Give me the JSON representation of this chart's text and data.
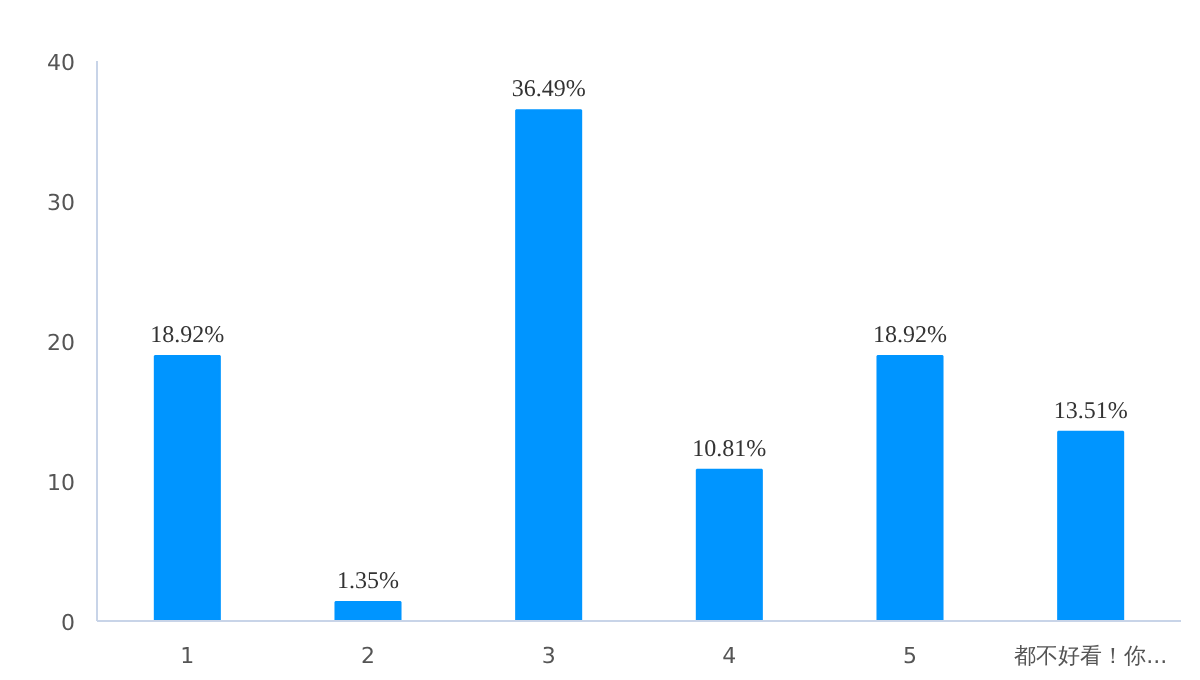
{
  "chart_data": {
    "type": "bar",
    "categories": [
      "1",
      "2",
      "3",
      "4",
      "5",
      "都不好看！你..."
    ],
    "values": [
      18.92,
      1.35,
      36.49,
      10.81,
      18.92,
      13.51
    ],
    "value_labels": [
      "18.92%",
      "1.35%",
      "36.49%",
      "10.81%",
      "18.92%",
      "13.51%"
    ],
    "color": "#0095ff",
    "ylim": [
      0,
      40
    ],
    "yticks": [
      0,
      10,
      20,
      30,
      40
    ],
    "grid": false
  }
}
